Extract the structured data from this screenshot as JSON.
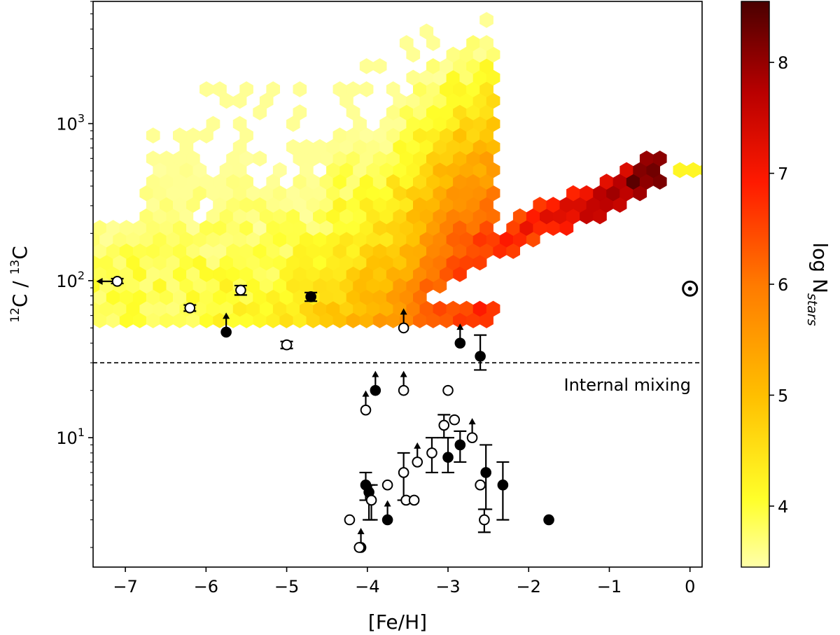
{
  "chart_data": {
    "type": "scatter",
    "xlabel": "[Fe/H]",
    "ylabel_parts": [
      "12",
      "C / ",
      "13",
      "C"
    ],
    "y_scale": "log",
    "xlim": [
      -7.4,
      0.15
    ],
    "ylim": [
      1.5,
      6000
    ],
    "x_ticks": [
      -7,
      -6,
      -5,
      -4,
      -3,
      -2,
      -1,
      0
    ],
    "x_tick_labels": [
      "−7",
      "−6",
      "−5",
      "−4",
      "−3",
      "−2",
      "−1",
      "0"
    ],
    "y_ticks": [
      10,
      100,
      1000
    ],
    "y_tick_labels": [
      [
        "10",
        "1"
      ],
      [
        "10",
        "2"
      ],
      [
        "10",
        "3"
      ]
    ],
    "mixing_threshold": 30,
    "mixing_label": "Internal mixing",
    "colorbar": {
      "label_main": "log N",
      "label_sub": "stars",
      "range": [
        3.45,
        8.55
      ],
      "ticks": [
        4,
        5,
        6,
        7,
        8
      ]
    },
    "solar": {
      "feh": 0.0,
      "ratio": 89
    },
    "density_ridge": [
      {
        "feh": -5.2,
        "ratio": 60,
        "logN": 4.2
      },
      {
        "feh": -4.2,
        "ratio": 60,
        "logN": 5.0
      },
      {
        "feh": -3.5,
        "ratio": 62,
        "logN": 5.7
      },
      {
        "feh": -3.0,
        "ratio": 110,
        "logN": 6.5
      },
      {
        "feh": -2.5,
        "ratio": 140,
        "logN": 6.8
      },
      {
        "feh": -2.0,
        "ratio": 220,
        "logN": 7.0
      },
      {
        "feh": -1.5,
        "ratio": 280,
        "logN": 7.6
      },
      {
        "feh": -1.0,
        "ratio": 330,
        "logN": 8.0
      },
      {
        "feh": -0.5,
        "ratio": 500,
        "logN": 8.4
      }
    ],
    "stars": [
      {
        "feh": -7.1,
        "ratio": 99,
        "filled": false,
        "err": [
          96,
          103
        ],
        "upper_limit_feh": true
      },
      {
        "feh": -6.2,
        "ratio": 67,
        "filled": false,
        "err": [
          64,
          70
        ]
      },
      {
        "feh": -5.57,
        "ratio": 87,
        "filled": false,
        "err": [
          81,
          93
        ]
      },
      {
        "feh": -5.0,
        "ratio": 39,
        "filled": false,
        "err": [
          37,
          41
        ]
      },
      {
        "feh": -4.7,
        "ratio": 79,
        "filled": true,
        "err": [
          74,
          84
        ]
      },
      {
        "feh": -5.75,
        "ratio": 47,
        "filled": true,
        "lower_limit": true
      },
      {
        "feh": -3.55,
        "ratio": 50,
        "filled": false,
        "lower_limit": true
      },
      {
        "feh": -2.85,
        "ratio": 40,
        "filled": true,
        "lower_limit": true
      },
      {
        "feh": -2.6,
        "ratio": 33,
        "filled": true,
        "err": [
          27,
          45
        ]
      },
      {
        "feh": -3.9,
        "ratio": 20,
        "filled": true,
        "lower_limit": true
      },
      {
        "feh": -3.55,
        "ratio": 20,
        "filled": false,
        "lower_limit": true
      },
      {
        "feh": -4.02,
        "ratio": 15,
        "filled": false,
        "lower_limit": true
      },
      {
        "feh": -3.0,
        "ratio": 20,
        "filled": false
      },
      {
        "feh": -3.05,
        "ratio": 12,
        "filled": false,
        "err": [
          10,
          14
        ]
      },
      {
        "feh": -2.92,
        "ratio": 13,
        "filled": false
      },
      {
        "feh": -2.7,
        "ratio": 10,
        "filled": false,
        "lower_limit": true
      },
      {
        "feh": -2.85,
        "ratio": 9,
        "filled": true,
        "err": [
          7,
          11
        ]
      },
      {
        "feh": -3.0,
        "ratio": 7.5,
        "filled": true,
        "err": [
          6,
          10
        ]
      },
      {
        "feh": -3.2,
        "ratio": 8,
        "filled": false,
        "err": [
          6,
          10
        ]
      },
      {
        "feh": -3.38,
        "ratio": 7,
        "filled": false,
        "lower_limit": true
      },
      {
        "feh": -3.55,
        "ratio": 6,
        "filled": false,
        "err": [
          4,
          8
        ]
      },
      {
        "feh": -3.52,
        "ratio": 4,
        "filled": false
      },
      {
        "feh": -3.42,
        "ratio": 4,
        "filled": false
      },
      {
        "feh": -3.75,
        "ratio": 5,
        "filled": false
      },
      {
        "feh": -4.02,
        "ratio": 5,
        "filled": true,
        "err": [
          4,
          6
        ]
      },
      {
        "feh": -3.98,
        "ratio": 4.5,
        "filled": true,
        "err": [
          3,
          5
        ]
      },
      {
        "feh": -3.95,
        "ratio": 4,
        "filled": false,
        "err": [
          3,
          5
        ]
      },
      {
        "feh": -3.75,
        "ratio": 3,
        "filled": true,
        "lower_limit": true
      },
      {
        "feh": -4.22,
        "ratio": 3,
        "filled": false
      },
      {
        "feh": -4.08,
        "ratio": 2,
        "filled": true,
        "lower_limit": true
      },
      {
        "feh": -4.1,
        "ratio": 2,
        "filled": false
      },
      {
        "feh": -2.6,
        "ratio": 5,
        "filled": false
      },
      {
        "feh": -2.53,
        "ratio": 6,
        "filled": true,
        "err": [
          3.5,
          9
        ]
      },
      {
        "feh": -2.55,
        "ratio": 3,
        "filled": false,
        "err": [
          2.5,
          3.5
        ]
      },
      {
        "feh": -2.32,
        "ratio": 5,
        "filled": true,
        "err": [
          3,
          7
        ]
      },
      {
        "feh": -1.75,
        "ratio": 3,
        "filled": true
      }
    ]
  }
}
